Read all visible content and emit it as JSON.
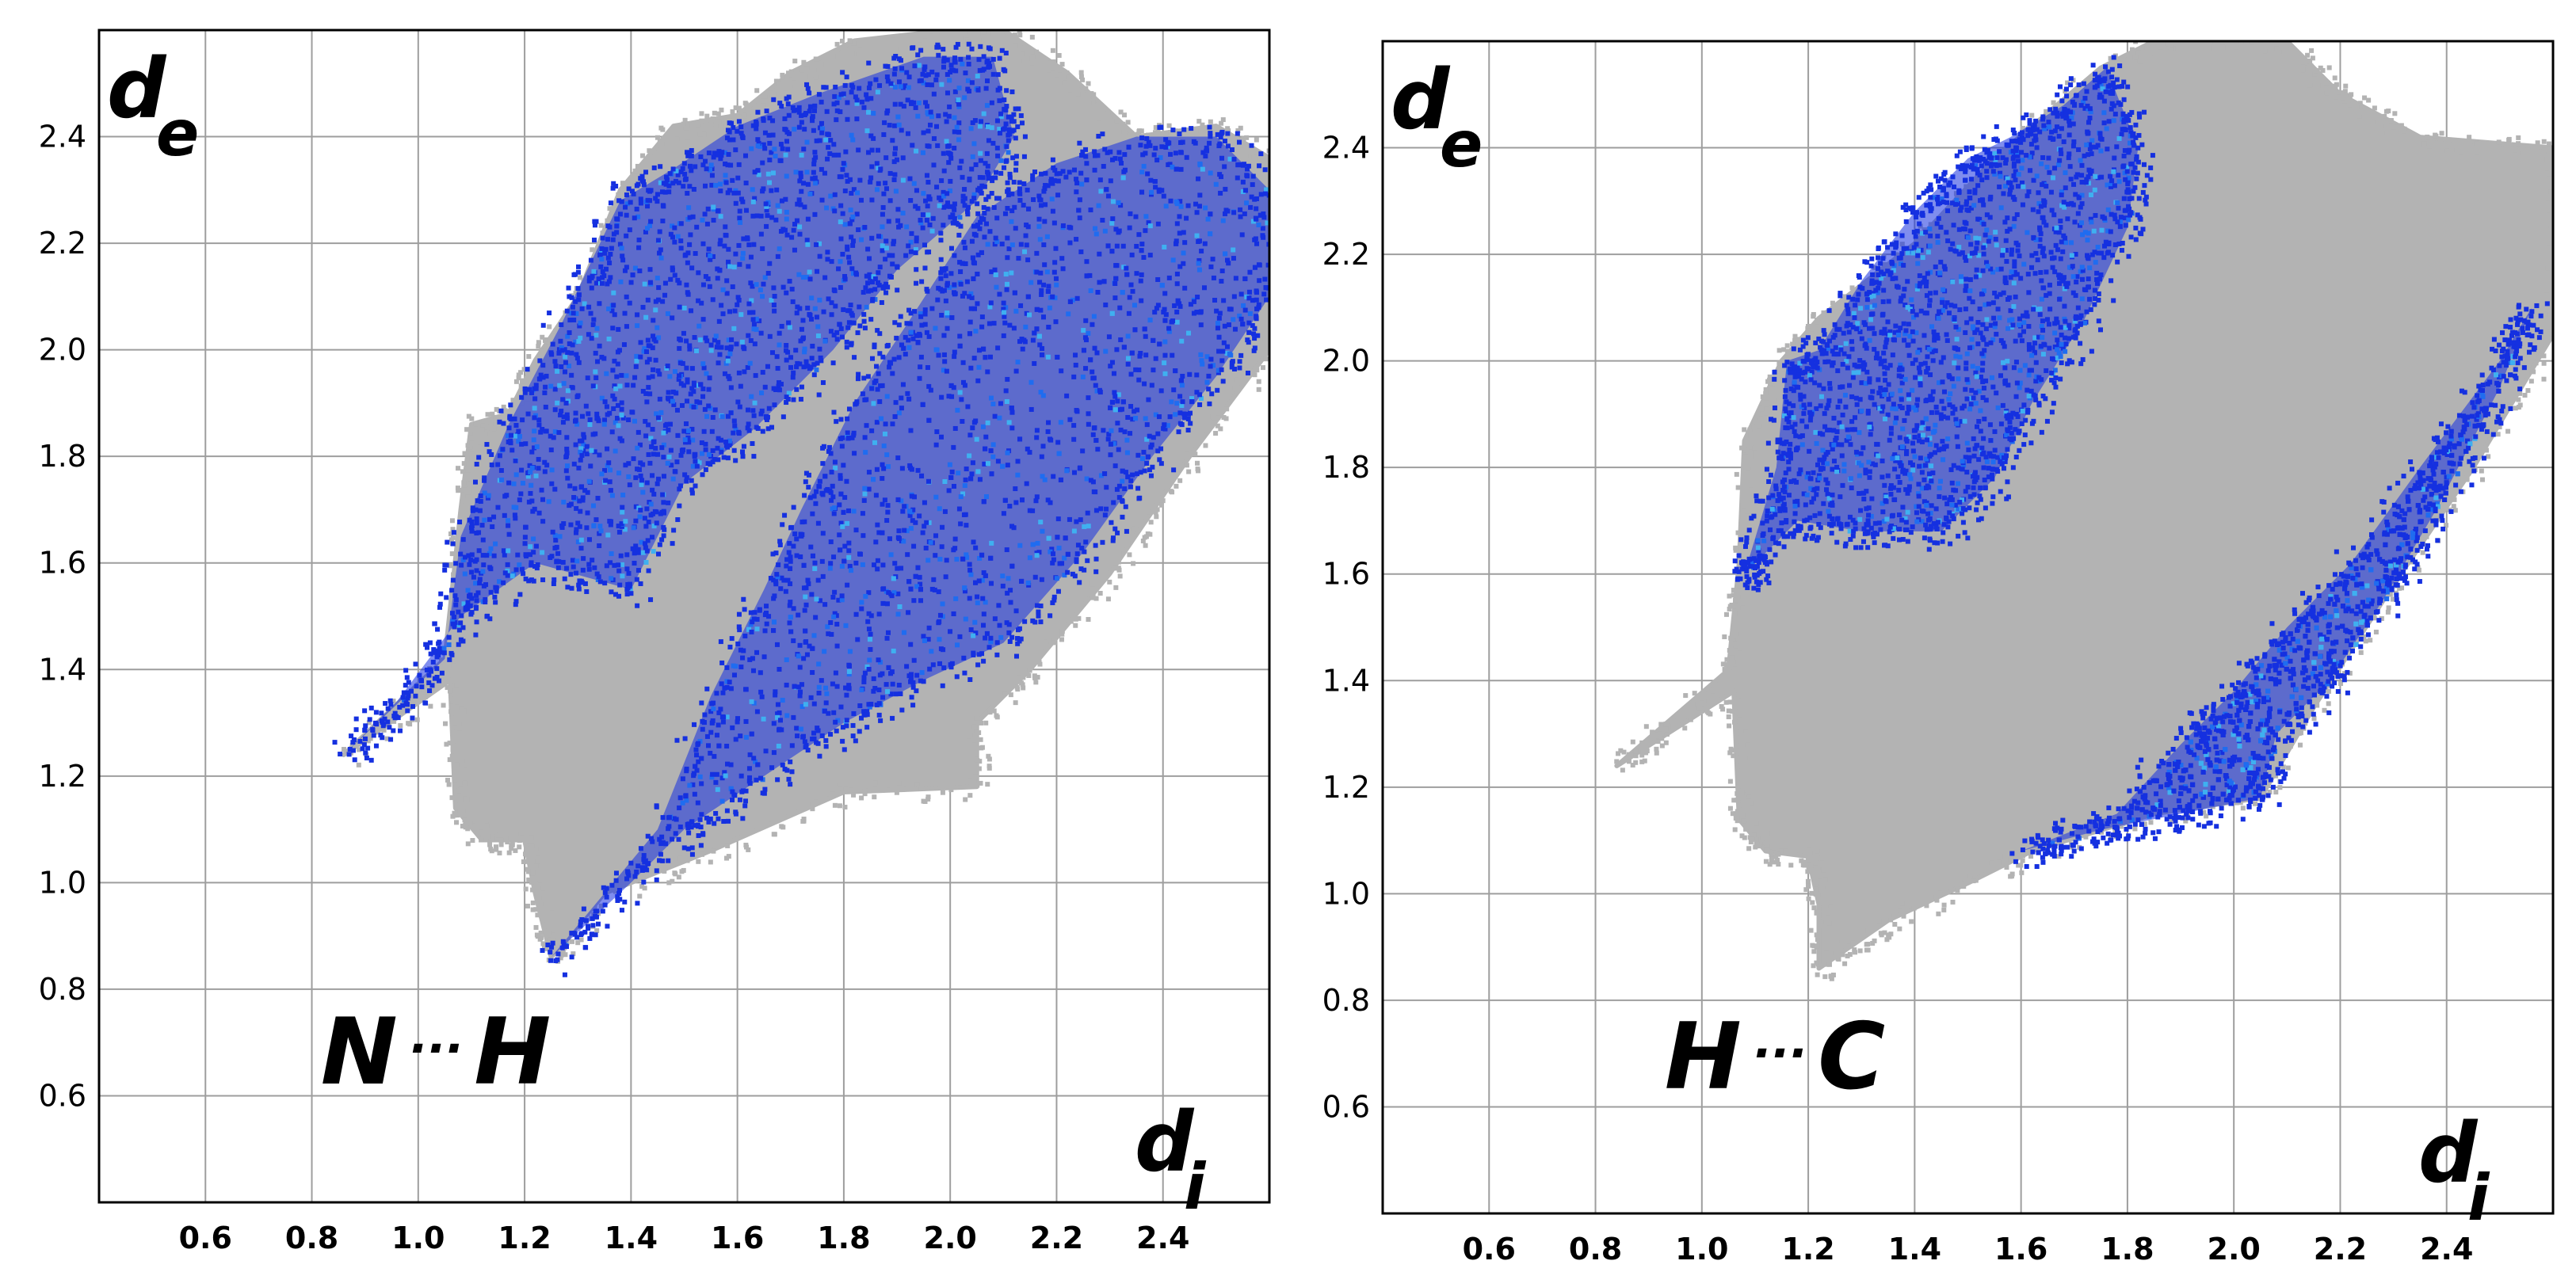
{
  "chart_data": [
    {
      "type": "scatter",
      "title": "",
      "annotation": {
        "left": "N",
        "dots": "···",
        "right": "H"
      },
      "xlabel": {
        "base": "d",
        "sub": "i"
      },
      "ylabel": {
        "base": "d",
        "sub": "e"
      },
      "xlim": [
        0.4,
        2.6
      ],
      "ylim": [
        0.4,
        2.6
      ],
      "xticks": [
        "0.6",
        "0.8",
        "1.0",
        "1.2",
        "1.4",
        "1.6",
        "1.8",
        "2.0",
        "2.2",
        "2.4"
      ],
      "yticks": [
        "0.6",
        "0.8",
        "1.0",
        "1.2",
        "1.4",
        "1.6",
        "1.8",
        "2.0",
        "2.2",
        "2.4"
      ],
      "grid": true,
      "series": [
        {
          "role": "full-fingerprint",
          "color": "#b3b3b3",
          "outline": [
            [
              0.86,
              1.24
            ],
            [
              1.05,
              1.42
            ],
            [
              1.08,
              1.7
            ],
            [
              1.1,
              1.86
            ],
            [
              1.17,
              1.88
            ],
            [
              1.22,
              1.98
            ],
            [
              1.3,
              2.1
            ],
            [
              1.38,
              2.3
            ],
            [
              1.48,
              2.42
            ],
            [
              1.6,
              2.44
            ],
            [
              1.7,
              2.52
            ],
            [
              1.82,
              2.58
            ],
            [
              2.0,
              2.6
            ],
            [
              2.1,
              2.6
            ],
            [
              2.22,
              2.52
            ],
            [
              2.35,
              2.4
            ],
            [
              2.5,
              2.42
            ],
            [
              2.6,
              2.36
            ],
            [
              2.6,
              2.0
            ],
            [
              2.45,
              1.8
            ],
            [
              2.3,
              1.58
            ],
            [
              2.15,
              1.4
            ],
            [
              2.05,
              1.3
            ],
            [
              2.05,
              1.18
            ],
            [
              1.8,
              1.17
            ],
            [
              1.55,
              1.06
            ],
            [
              1.35,
              0.98
            ],
            [
              1.25,
              0.86
            ],
            [
              1.22,
              0.98
            ],
            [
              1.2,
              1.08
            ],
            [
              1.12,
              1.08
            ],
            [
              1.07,
              1.14
            ],
            [
              1.06,
              1.38
            ]
          ]
        },
        {
          "role": "contact-N...H",
          "color": "#1530e0",
          "clusters": [
            {
              "outline": [
                [
                  0.86,
                  1.24
                ],
                [
                  1.05,
                  1.42
                ],
                [
                  1.08,
                  1.65
                ],
                [
                  1.17,
                  1.86
                ],
                [
                  1.27,
                  2.05
                ],
                [
                  1.38,
                  2.28
                ],
                [
                  1.48,
                  2.34
                ],
                [
                  1.6,
                  2.42
                ],
                [
                  1.75,
                  2.48
                ],
                [
                  1.95,
                  2.55
                ],
                [
                  2.08,
                  2.55
                ],
                [
                  2.12,
                  2.4
                ],
                [
                  2.05,
                  2.28
                ],
                [
                  1.9,
                  2.15
                ],
                [
                  1.78,
                  2.0
                ],
                [
                  1.63,
                  1.85
                ],
                [
                  1.5,
                  1.75
                ],
                [
                  1.4,
                  1.55
                ],
                [
                  1.22,
                  1.6
                ],
                [
                  1.08,
                  1.5
                ],
                [
                  0.96,
                  1.34
                ]
              ]
            },
            {
              "outline": [
                [
                  1.25,
                  0.86
                ],
                [
                  1.45,
                  1.1
                ],
                [
                  1.55,
                  1.35
                ],
                [
                  1.65,
                  1.55
                ],
                [
                  1.72,
                  1.7
                ],
                [
                  1.82,
                  1.9
                ],
                [
                  1.92,
                  2.05
                ],
                [
                  2.05,
                  2.25
                ],
                [
                  2.2,
                  2.35
                ],
                [
                  2.35,
                  2.4
                ],
                [
                  2.5,
                  2.4
                ],
                [
                  2.6,
                  2.3
                ],
                [
                  2.6,
                  2.1
                ],
                [
                  2.5,
                  1.95
                ],
                [
                  2.38,
                  1.8
                ],
                [
                  2.25,
                  1.62
                ],
                [
                  2.1,
                  1.45
                ],
                [
                  1.95,
                  1.38
                ],
                [
                  1.8,
                  1.3
                ],
                [
                  1.65,
                  1.2
                ],
                [
                  1.5,
                  1.1
                ],
                [
                  1.4,
                  1.0
                ]
              ]
            }
          ]
        }
      ]
    },
    {
      "type": "scatter",
      "title": "",
      "annotation": {
        "left": "H",
        "dots": "···",
        "right": "C"
      },
      "xlabel": {
        "base": "d",
        "sub": "i"
      },
      "ylabel": {
        "base": "d",
        "sub": "e"
      },
      "xlim": [
        0.4,
        2.6
      ],
      "ylim": [
        0.4,
        2.6
      ],
      "xticks": [
        "0.6",
        "0.8",
        "1.0",
        "1.2",
        "1.4",
        "1.6",
        "1.8",
        "2.0",
        "2.2",
        "2.4"
      ],
      "yticks": [
        "0.6",
        "0.8",
        "1.0",
        "1.2",
        "1.4",
        "1.6",
        "1.8",
        "2.0",
        "2.2",
        "2.4"
      ],
      "grid": true,
      "series": [
        {
          "role": "full-fingerprint",
          "color": "#b3b3b3",
          "outline": [
            [
              0.84,
              1.24
            ],
            [
              1.05,
              1.42
            ],
            [
              1.07,
              1.62
            ],
            [
              1.08,
              1.85
            ],
            [
              1.15,
              2.0
            ],
            [
              1.22,
              2.08
            ],
            [
              1.4,
              2.22
            ],
            [
              1.55,
              2.38
            ],
            [
              1.75,
              2.55
            ],
            [
              1.85,
              2.6
            ],
            [
              2.1,
              2.6
            ],
            [
              2.2,
              2.5
            ],
            [
              2.35,
              2.42
            ],
            [
              2.6,
              2.4
            ],
            [
              2.6,
              2.05
            ],
            [
              2.45,
              1.8
            ],
            [
              2.3,
              1.58
            ],
            [
              2.15,
              1.35
            ],
            [
              2.05,
              1.18
            ],
            [
              1.85,
              1.15
            ],
            [
              1.62,
              1.08
            ],
            [
              1.5,
              1.02
            ],
            [
              1.35,
              0.95
            ],
            [
              1.22,
              0.86
            ],
            [
              1.22,
              0.98
            ],
            [
              1.2,
              1.07
            ],
            [
              1.12,
              1.08
            ],
            [
              1.07,
              1.14
            ],
            [
              1.06,
              1.38
            ]
          ]
        },
        {
          "role": "contact-H...C",
          "color": "#1530e0",
          "clusters": [
            {
              "outline": [
                [
                  1.08,
                  1.6
                ],
                [
                  1.14,
                  1.8
                ],
                [
                  1.16,
                  2.0
                ],
                [
                  1.22,
                  2.02
                ],
                [
                  1.3,
                  2.15
                ],
                [
                  1.4,
                  2.28
                ],
                [
                  1.5,
                  2.38
                ],
                [
                  1.58,
                  2.42
                ],
                [
                  1.68,
                  2.48
                ],
                [
                  1.76,
                  2.55
                ],
                [
                  1.82,
                  2.4
                ],
                [
                  1.8,
                  2.25
                ],
                [
                  1.72,
                  2.08
                ],
                [
                  1.62,
                  1.92
                ],
                [
                  1.55,
                  1.78
                ],
                [
                  1.45,
                  1.68
                ],
                [
                  1.3,
                  1.68
                ],
                [
                  1.18,
                  1.7
                ],
                [
                  1.1,
                  1.62
                ]
              ]
            },
            {
              "outline": [
                [
                  1.6,
                  1.08
                ],
                [
                  1.78,
                  1.15
                ],
                [
                  1.9,
                  1.28
                ],
                [
                  2.0,
                  1.38
                ],
                [
                  2.1,
                  1.5
                ],
                [
                  2.22,
                  1.62
                ],
                [
                  2.35,
                  1.8
                ],
                [
                  2.5,
                  2.0
                ],
                [
                  2.56,
                  2.1
                ],
                [
                  2.5,
                  1.95
                ],
                [
                  2.38,
                  1.72
                ],
                [
                  2.28,
                  1.55
                ],
                [
                  2.18,
                  1.4
                ],
                [
                  2.08,
                  1.3
                ],
                [
                  2.05,
                  1.18
                ],
                [
                  1.9,
                  1.15
                ],
                [
                  1.75,
                  1.12
                ]
              ]
            }
          ]
        }
      ]
    }
  ]
}
